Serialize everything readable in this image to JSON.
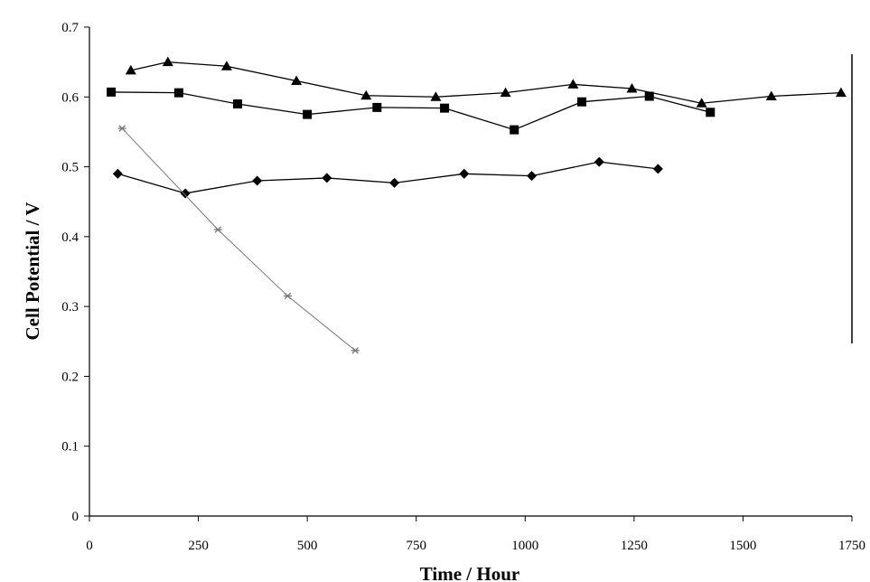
{
  "chart_data": {
    "type": "line",
    "title": "",
    "xlabel": "Time / Hour",
    "ylabel": "Cell Potential / V",
    "xlim": [
      0,
      1750
    ],
    "ylim": [
      0,
      0.7
    ],
    "x_ticks": [
      0,
      250,
      500,
      750,
      1000,
      1250,
      1500,
      1750
    ],
    "y_ticks": [
      0,
      0.1,
      0.2,
      0.3,
      0.4,
      0.5,
      0.6,
      0.7
    ],
    "x_tick_labels": [
      "0",
      "250",
      "500",
      "750",
      "1000",
      "1250",
      "1500",
      "1750"
    ],
    "y_tick_labels": [
      "0",
      "0.1",
      "0.2",
      "0.3",
      "0.4",
      "0.5",
      "0.6",
      "0.7"
    ],
    "grid": false,
    "legend": "none",
    "series": [
      {
        "marker": "triangle",
        "color": "#000000",
        "points": [
          [
            95,
            0.638
          ],
          [
            180,
            0.65
          ],
          [
            315,
            0.644
          ],
          [
            475,
            0.623
          ],
          [
            635,
            0.602
          ],
          [
            795,
            0.6
          ],
          [
            955,
            0.606
          ],
          [
            1110,
            0.618
          ],
          [
            1245,
            0.612
          ],
          [
            1405,
            0.591
          ],
          [
            1565,
            0.601
          ],
          [
            1725,
            0.606
          ]
        ]
      },
      {
        "marker": "square",
        "color": "#000000",
        "points": [
          [
            50,
            0.607
          ],
          [
            205,
            0.606
          ],
          [
            340,
            0.59
          ],
          [
            500,
            0.575
          ],
          [
            660,
            0.585
          ],
          [
            815,
            0.584
          ],
          [
            975,
            0.553
          ],
          [
            1130,
            0.593
          ],
          [
            1285,
            0.601
          ],
          [
            1425,
            0.578
          ]
        ]
      },
      {
        "marker": "diamond",
        "color": "#000000",
        "points": [
          [
            65,
            0.49
          ],
          [
            220,
            0.462
          ],
          [
            385,
            0.48
          ],
          [
            545,
            0.484
          ],
          [
            700,
            0.477
          ],
          [
            860,
            0.49
          ],
          [
            1015,
            0.487
          ],
          [
            1170,
            0.507
          ],
          [
            1305,
            0.497
          ]
        ]
      },
      {
        "marker": "asterisk",
        "color": "#777777",
        "points": [
          [
            75,
            0.555
          ],
          [
            295,
            0.41
          ],
          [
            455,
            0.315
          ],
          [
            610,
            0.237
          ]
        ]
      }
    ]
  }
}
